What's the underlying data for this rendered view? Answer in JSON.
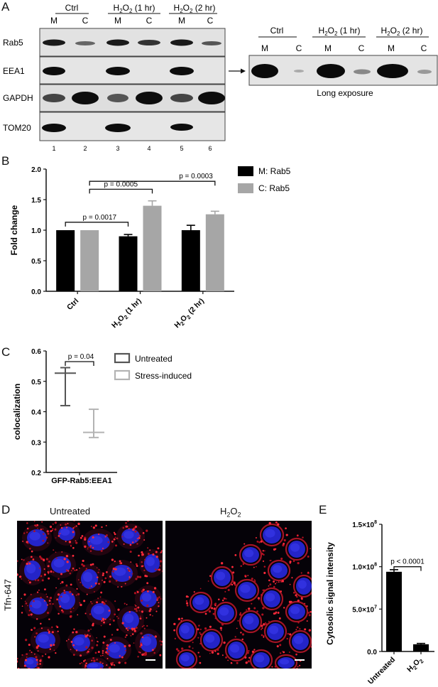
{
  "panels": {
    "a": {
      "letter": "A"
    },
    "b": {
      "letter": "B"
    },
    "c": {
      "letter": "C"
    },
    "d": {
      "letter": "D"
    },
    "e": {
      "letter": "E"
    }
  },
  "panel_a": {
    "groups": [
      {
        "label": "Ctrl",
        "sub": ""
      },
      {
        "label": "H",
        "sub": "2",
        "mid": "O",
        "sub2": "2",
        "tail": " (1 hr)"
      },
      {
        "label": "H",
        "sub": "2",
        "mid": "O",
        "sub2": "2",
        "tail": " (2 hr)"
      }
    ],
    "lane_codes": [
      "M",
      "C",
      "M",
      "C",
      "M",
      "C"
    ],
    "lane_numbers": [
      "1",
      "2",
      "3",
      "4",
      "5",
      "6"
    ],
    "rows": [
      "Rab5",
      "EEA1",
      "GAPDH",
      "TOM20"
    ],
    "long_exposure_lane_codes": [
      "M",
      "C",
      "M",
      "C",
      "M",
      "C"
    ],
    "long_exposure_caption": "Long exposure"
  },
  "chart_data": [
    {
      "id": "B",
      "type": "bar",
      "categories": [
        "Ctrl",
        "H2O2 (1 hr)",
        "H2O2 (2 hr)"
      ],
      "series": [
        {
          "name": "M: Rab5",
          "values": [
            1.0,
            0.9,
            1.0
          ],
          "errors": [
            0,
            0.03,
            0.08
          ],
          "color": "#000000"
        },
        {
          "name": "C: Rab5",
          "values": [
            1.0,
            1.4,
            1.26
          ],
          "errors": [
            0,
            0.08,
            0.05
          ],
          "color": "#a6a6a6"
        }
      ],
      "ylabel": "Fold change",
      "ylim": [
        0.0,
        2.0
      ],
      "yticks": [
        "0.0",
        "0.5",
        "1.0",
        "1.5",
        "2.0"
      ],
      "annotations": [
        "p = 0.0017",
        "p = 0.0005",
        "p = 0.0003"
      ]
    },
    {
      "id": "C",
      "type": "scatter",
      "categories": [
        "GFP-Rab5:EEA1"
      ],
      "series": [
        {
          "name": "Untreated",
          "median": 0.527,
          "upper": 0.545,
          "lower": 0.42,
          "color": "#555555"
        },
        {
          "name": "Stress-induced",
          "median": 0.332,
          "upper": 0.408,
          "lower": 0.315,
          "color": "#b3b3b3"
        }
      ],
      "ylabel": "colocalization",
      "ylim": [
        0.2,
        0.6
      ],
      "yticks": [
        "0.2",
        "0.3",
        "0.4",
        "0.5",
        "0.6"
      ],
      "annotations": [
        "p = 0.04"
      ]
    },
    {
      "id": "E",
      "type": "bar",
      "categories": [
        "Untreated",
        "H2O2"
      ],
      "values": [
        94000000.0,
        8500000.0
      ],
      "errors": [
        2500000.0,
        1000000.0
      ],
      "ylabel": "Cytosolic signal intensity",
      "ylim": [
        0,
        150000000.0
      ],
      "yticks": [
        "0.0",
        "5.0×10",
        "1.0×10",
        "1.5×10"
      ],
      "ytick_exps": [
        "",
        "7",
        "8",
        "8"
      ],
      "annotations": [
        "p < 0.0001"
      ]
    }
  ],
  "panel_d": {
    "row_label": "Tfn-647",
    "untreated_title": "Untreated",
    "h2o2_title_main": "H",
    "h2o2_title_sub": "2",
    "h2o2_title_mid": "O",
    "h2o2_title_sub2": "2"
  },
  "colors": {
    "blot_bg": "#e4e4e4",
    "nucleus": "#2a2ad8",
    "membrane": "#d8202a"
  }
}
